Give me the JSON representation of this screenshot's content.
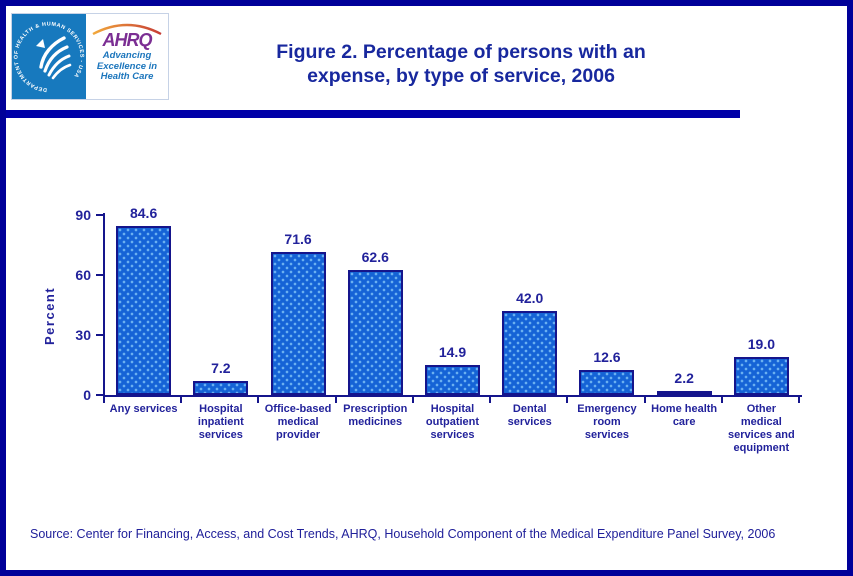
{
  "header": {
    "hhs_seal_text": "DEPARTMENT OF HEALTH & HUMAN SERVICES - USA",
    "ahrq_acronym": "AHRQ",
    "ahrq_tagline": "Advancing\nExcellence in\nHealth Care"
  },
  "title": {
    "line1": "Figure 2. Percentage of persons with an",
    "line2": "expense, by type of service, 2006"
  },
  "chart_data": {
    "type": "bar",
    "title": "Figure 2. Percentage of persons with an expense, by type of service, 2006",
    "categories": [
      "Any services",
      "Hospital inpatient services",
      "Office-based medical provider",
      "Prescription medicines",
      "Hospital outpatient services",
      "Dental services",
      "Emergency room services",
      "Home health care",
      "Other medical services and equipment"
    ],
    "category_label_lines": [
      [
        "Any services"
      ],
      [
        "Hospital",
        "inpatient",
        "services"
      ],
      [
        "Office-based",
        "medical",
        "provider"
      ],
      [
        "Prescription",
        "medicines"
      ],
      [
        "Hospital",
        "outpatient",
        "services"
      ],
      [
        "Dental",
        "services"
      ],
      [
        "Emergency",
        "room",
        "services"
      ],
      [
        "Home health",
        "care"
      ],
      [
        "Other",
        "medical",
        "services and",
        "equipment"
      ]
    ],
    "values": [
      84.6,
      7.2,
      71.6,
      62.6,
      14.9,
      42.0,
      12.6,
      2.2,
      19.0
    ],
    "value_labels": [
      "84.6",
      "7.2",
      "71.6",
      "62.6",
      "14.9",
      "42.0",
      "12.6",
      "2.2",
      "19.0"
    ],
    "xlabel": "",
    "ylabel": "Percent",
    "ylim": [
      0,
      90
    ],
    "yticks": [
      0,
      30,
      60,
      90
    ],
    "grid": false,
    "legend": false
  },
  "source": {
    "text": "Source: Center for Financing, Access, and Cost Trends, AHRQ, Household Component of the Medical Expenditure Panel Survey, 2006"
  },
  "colors": {
    "page_border": "#000099",
    "header_rule": "#0000A8",
    "title_text": "#18289E",
    "axis_text": "#22229B",
    "bar_fill": "#1563D6",
    "bar_dot": "#6FB4F2",
    "bar_border": "#15158C",
    "source_text": "#20209A",
    "hhs_blue": "#1779BE",
    "ahrq_purple": "#7B2E93",
    "arc_yellow": "#F2A93B",
    "arc_red": "#C63C35",
    "tagline_blue": "#1B75BC"
  }
}
